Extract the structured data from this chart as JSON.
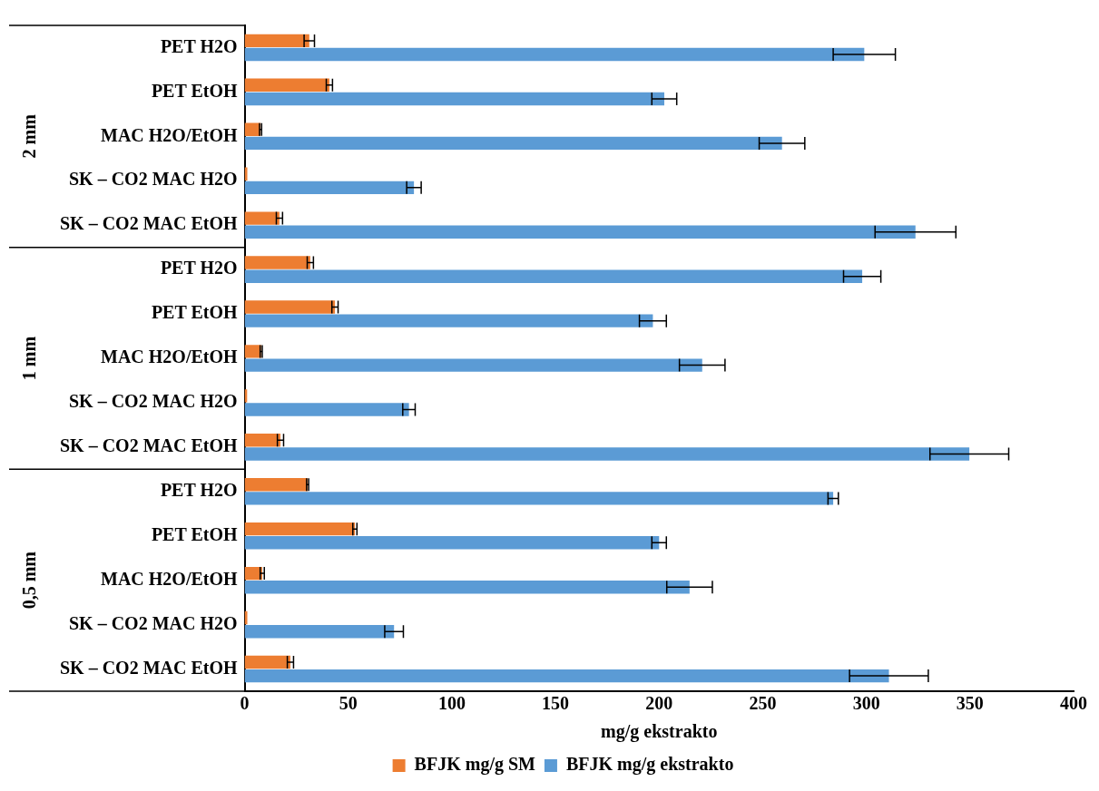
{
  "chart_data": {
    "type": "bar",
    "orientation": "horizontal",
    "xlabel": "mg/g ekstrakto",
    "categories": [
      "PET H2O",
      "PET EtOH",
      "MAC H2O/EtOH",
      "SK – CO2 MAC H2O",
      "SK – CO2 MAC EtOH",
      "PET H2O",
      "PET EtOH",
      "MAC H2O/EtOH",
      "SK – CO2 MAC H2O",
      "SK – CO2 MAC EtOH",
      "PET H2O",
      "PET EtOH",
      "MAC H2O/EtOH",
      "SK – CO2 MAC H2O",
      "SK – CO2 MAC EtOH"
    ],
    "series": [
      {
        "name": "BFJK mg/g SM",
        "color": "#ed7d31",
        "values": [
          31.2,
          40.9,
          7.7,
          1.3,
          16.8,
          31.7,
          43.6,
          8,
          1.2,
          17.3,
          30.4,
          53.2,
          8.5,
          1.3,
          22.1
        ],
        "errors": [
          2.5,
          1.5,
          0.5,
          null,
          1.5,
          1.5,
          1.5,
          0.5,
          null,
          1.5,
          0.5,
          1,
          1,
          null,
          1.5
        ]
      },
      {
        "name": "BFJK mg/g ekstrakto",
        "color": "#5b9bd5",
        "values": [
          299,
          202.5,
          259.3,
          81.7,
          323.7,
          298,
          197,
          220.8,
          79.3,
          349.7,
          284,
          200,
          214.7,
          72.1,
          310.9
        ],
        "errors": [
          15,
          6,
          11,
          3.5,
          19.5,
          9,
          6.5,
          11,
          3,
          19,
          2.5,
          3.5,
          11,
          4.5,
          19
        ]
      }
    ],
    "xlim": [
      0,
      400
    ],
    "xticks": [
      0,
      50,
      100,
      150,
      200,
      250,
      300,
      350,
      400
    ],
    "grid": false,
    "legend": "bottom",
    "annotations": [
      "2 mm",
      "1 mm",
      "0,5 mm"
    ]
  }
}
